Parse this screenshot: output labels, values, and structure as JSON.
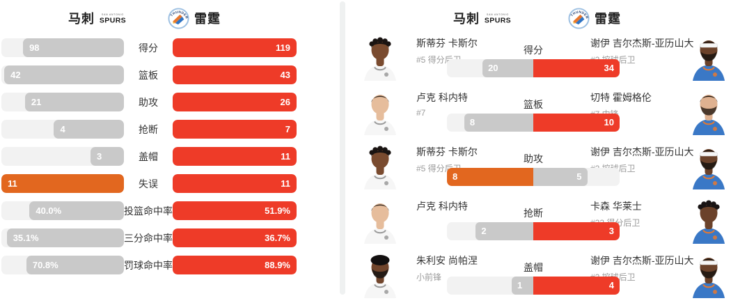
{
  "teams": {
    "left": {
      "name": "马刺"
    },
    "right": {
      "name": "雷霆"
    }
  },
  "logos": {
    "spurs_top": "SAN ANTONIO",
    "spurs_main": "SPURS",
    "thunder_text": "THUNDER"
  },
  "colors": {
    "accent_red": "#ee3b28",
    "accent_orange": "#e2671f",
    "bar_gray": "#c9c9c9",
    "bar_track": "#f2f2f2"
  },
  "team_stats": {
    "rows": [
      {
        "label": "得分",
        "left": {
          "display": "98",
          "value": 98,
          "highlight": false
        },
        "right": {
          "display": "119",
          "value": 119,
          "highlight": true
        }
      },
      {
        "label": "篮板",
        "left": {
          "display": "42",
          "value": 42,
          "highlight": false
        },
        "right": {
          "display": "43",
          "value": 43,
          "highlight": true
        }
      },
      {
        "label": "助攻",
        "left": {
          "display": "21",
          "value": 21,
          "highlight": false
        },
        "right": {
          "display": "26",
          "value": 26,
          "highlight": true
        }
      },
      {
        "label": "抢断",
        "left": {
          "display": "4",
          "value": 4,
          "highlight": false
        },
        "right": {
          "display": "7",
          "value": 7,
          "highlight": true
        }
      },
      {
        "label": "盖帽",
        "left": {
          "display": "3",
          "value": 3,
          "highlight": false
        },
        "right": {
          "display": "11",
          "value": 11,
          "highlight": true
        }
      },
      {
        "label": "失误",
        "left": {
          "display": "11",
          "value": 11,
          "highlight": true
        },
        "right": {
          "display": "11",
          "value": 11,
          "highlight": true
        }
      },
      {
        "label": "投篮命中率",
        "gap_before": true,
        "left": {
          "display": "40.0%",
          "value": 40.0,
          "highlight": false
        },
        "right": {
          "display": "51.9%",
          "value": 51.9,
          "highlight": true
        }
      },
      {
        "label": "三分命中率",
        "left": {
          "display": "35.1%",
          "value": 35.1,
          "highlight": false
        },
        "right": {
          "display": "36.7%",
          "value": 36.7,
          "highlight": true
        }
      },
      {
        "label": "罚球命中率",
        "left": {
          "display": "70.8%",
          "value": 70.8,
          "highlight": false
        },
        "right": {
          "display": "88.9%",
          "value": 88.9,
          "highlight": true
        }
      }
    ]
  },
  "player_stats": {
    "rows": [
      {
        "stat": "得分",
        "left": {
          "name": "斯蒂芬 卡斯尔",
          "detail": "#5 得分后卫",
          "display": "20",
          "value": 20,
          "highlight": false,
          "avatar": {
            "skin": "#7a4b2f",
            "hair": "#1a1412",
            "hair_style": "twists",
            "jersey": "#f6f6f6",
            "trim": "#9a9a9a",
            "headband": false,
            "beard": false
          }
        },
        "right": {
          "name": "谢伊 吉尔杰斯-亚历山大",
          "detail": "#2 控球后卫",
          "display": "34",
          "value": 34,
          "highlight": true,
          "avatar": {
            "skin": "#6b422a",
            "hair": "#15110e",
            "hair_style": "short",
            "jersey": "#3a78c6",
            "trim": "#e8792f",
            "headband": true,
            "beard": true
          }
        }
      },
      {
        "stat": "篮板",
        "left": {
          "name": "卢克 科内特",
          "detail": "#7",
          "display": "8",
          "value": 8,
          "highlight": false,
          "avatar": {
            "skin": "#e6bd9c",
            "hair": "#3b2f26",
            "hair_style": "short",
            "jersey": "#f6f6f6",
            "trim": "#9a9a9a",
            "headband": false,
            "beard": false
          }
        },
        "right": {
          "name": "切特 霍姆格伦",
          "detail": "#7 中锋",
          "display": "10",
          "value": 10,
          "highlight": true,
          "avatar": {
            "skin": "#dfb190",
            "hair": "#241a12",
            "hair_style": "short",
            "jersey": "#3a78c6",
            "trim": "#e8792f",
            "headband": false,
            "beard": true
          }
        }
      },
      {
        "stat": "助攻",
        "left": {
          "name": "斯蒂芬 卡斯尔",
          "detail": "#5 得分后卫",
          "display": "8",
          "value": 8,
          "highlight": true,
          "avatar": {
            "skin": "#7a4b2f",
            "hair": "#1a1412",
            "hair_style": "twists",
            "jersey": "#f6f6f6",
            "trim": "#9a9a9a",
            "headband": false,
            "beard": false
          }
        },
        "right": {
          "name": "谢伊 吉尔杰斯-亚历山大",
          "detail": "#2 控球后卫",
          "display": "5",
          "value": 5,
          "highlight": false,
          "avatar": {
            "skin": "#6b422a",
            "hair": "#15110e",
            "hair_style": "short",
            "jersey": "#3a78c6",
            "trim": "#e8792f",
            "headband": true,
            "beard": true
          }
        }
      },
      {
        "stat": "抢断",
        "left": {
          "name": "卢克 科内特",
          "detail": "",
          "display": "2",
          "value": 2,
          "highlight": false,
          "avatar": {
            "skin": "#e6bd9c",
            "hair": "#3b2f26",
            "hair_style": "short",
            "jersey": "#f6f6f6",
            "trim": "#9a9a9a",
            "headband": false,
            "beard": false
          }
        },
        "right": {
          "name": "卡森 华莱士",
          "detail": "#22 得分后卫",
          "display": "3",
          "value": 3,
          "highlight": true,
          "avatar": {
            "skin": "#6b422a",
            "hair": "#191414",
            "hair_style": "twists",
            "jersey": "#3a78c6",
            "trim": "#e8792f",
            "headband": false,
            "beard": false
          }
        }
      },
      {
        "stat": "盖帽",
        "left": {
          "name": "朱利安 尚帕涅",
          "detail": "小前锋",
          "display": "1",
          "value": 1,
          "highlight": false,
          "avatar": {
            "skin": "#71452c",
            "hair": "#131010",
            "hair_style": "curly",
            "jersey": "#f6f6f6",
            "trim": "#9a9a9a",
            "headband": false,
            "beard": true
          }
        },
        "right": {
          "name": "谢伊 吉尔杰斯-亚历山大",
          "detail": "#2 控球后卫",
          "display": "4",
          "value": 4,
          "highlight": true,
          "avatar": {
            "skin": "#6b422a",
            "hair": "#15110e",
            "hair_style": "short",
            "jersey": "#3a78c6",
            "trim": "#e8792f",
            "headband": true,
            "beard": true
          }
        }
      }
    ]
  }
}
